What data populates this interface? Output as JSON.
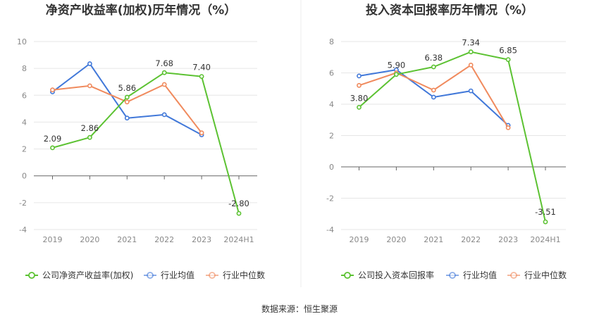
{
  "source_text": "数据来源：恒生聚源",
  "chart_data": [
    {
      "type": "line",
      "title": "净资产收益率(加权)历年情况（%）",
      "categories": [
        "2019",
        "2020",
        "2021",
        "2022",
        "2023",
        "2024H1"
      ],
      "ylim": [
        -4,
        10
      ],
      "yticks": [
        -4,
        -2,
        0,
        2,
        4,
        6,
        8,
        10
      ],
      "grid": true,
      "legend_position": "bottom",
      "series": [
        {
          "name": "公司净资产收益率(加权)",
          "color": "#5cc232",
          "values": [
            2.09,
            2.86,
            5.86,
            7.68,
            7.4,
            -2.8
          ],
          "labels": [
            "2.09",
            "2.86",
            "5.86",
            "7.68",
            "7.40",
            "-2.80"
          ]
        },
        {
          "name": "行业均值",
          "color": "#4178d9",
          "values": [
            6.25,
            8.35,
            4.3,
            4.55,
            3.05,
            null
          ]
        },
        {
          "name": "行业中位数",
          "color": "#f08a5d",
          "values": [
            6.4,
            6.7,
            5.5,
            6.8,
            3.2,
            null
          ]
        }
      ]
    },
    {
      "type": "line",
      "title": "投入资本回报率历年情况（%）",
      "categories": [
        "2019",
        "2020",
        "2021",
        "2022",
        "2023",
        "2024H1"
      ],
      "ylim": [
        -4,
        8
      ],
      "yticks": [
        -4,
        -2,
        0,
        2,
        4,
        6,
        8
      ],
      "grid": true,
      "legend_position": "bottom",
      "series": [
        {
          "name": "公司投入资本回报率",
          "color": "#5cc232",
          "values": [
            3.8,
            5.9,
            6.38,
            7.34,
            6.85,
            -3.51
          ],
          "labels": [
            "3.80",
            "5.90",
            "6.38",
            "7.34",
            "6.85",
            "-3.51"
          ]
        },
        {
          "name": "行业均值",
          "color": "#4178d9",
          "values": [
            5.8,
            6.2,
            4.45,
            4.85,
            2.65,
            null
          ]
        },
        {
          "name": "行业中位数",
          "color": "#f08a5d",
          "values": [
            5.2,
            6.0,
            4.9,
            6.5,
            2.5,
            null
          ]
        }
      ]
    }
  ]
}
